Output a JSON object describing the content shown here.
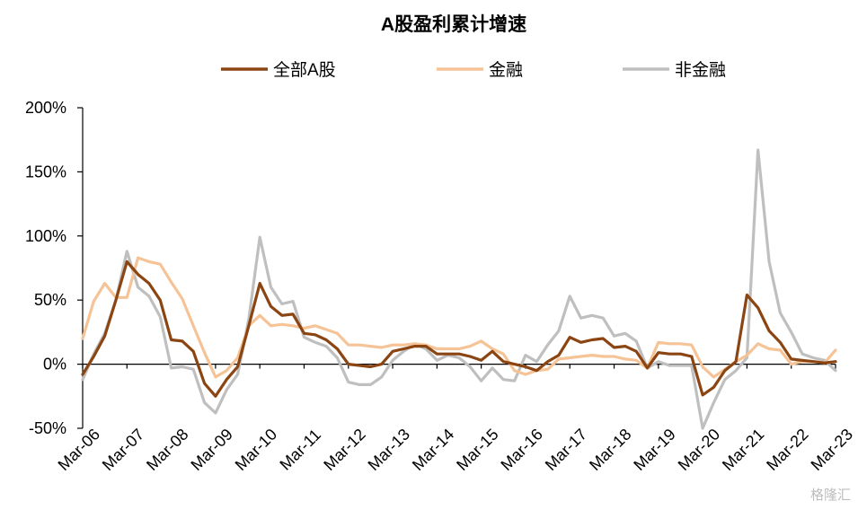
{
  "watermark": "格隆汇",
  "chart_data": {
    "type": "line",
    "title": "A股盈利累计增速",
    "xlabel": "",
    "ylabel": "",
    "ylim": [
      -50,
      200
    ],
    "yticks": [
      -50,
      0,
      50,
      100,
      150,
      200
    ],
    "ytick_labels": [
      "-50%",
      "0%",
      "50%",
      "100%",
      "150%",
      "200%"
    ],
    "y_unit": "%",
    "x_tick_labels": [
      "Mar-06",
      "Mar-07",
      "Mar-08",
      "Mar-09",
      "Mar-10",
      "Mar-11",
      "Mar-12",
      "Mar-13",
      "Mar-14",
      "Mar-15",
      "Mar-16",
      "Mar-17",
      "Mar-18",
      "Mar-19",
      "Mar-20",
      "Mar-21",
      "Mar-22",
      "Mar-23"
    ],
    "x_frequency": "quarterly",
    "x_start": "Mar-06",
    "grid": false,
    "legend_position": "top",
    "series": [
      {
        "name": "全部A股",
        "color": "#8B4513",
        "values": [
          -8,
          6,
          22,
          50,
          80,
          70,
          63,
          50,
          19,
          18,
          10,
          -15,
          -25,
          -12,
          -2,
          30,
          63,
          45,
          38,
          39,
          24,
          23,
          19,
          12,
          0,
          -1,
          -2,
          0,
          10,
          12,
          14,
          14,
          8,
          8,
          8,
          6,
          3,
          10,
          2,
          0,
          -2,
          -5,
          2,
          7,
          21,
          17,
          19,
          20,
          13,
          14,
          10,
          -3,
          9,
          8,
          8,
          6,
          -24,
          -18,
          -5,
          2,
          54,
          44,
          26,
          17,
          4,
          3,
          2,
          1,
          2
        ]
      },
      {
        "name": "金融",
        "color": "#F5C396",
        "values": [
          20,
          49,
          63,
          52,
          52,
          83,
          80,
          78,
          64,
          51,
          30,
          9,
          -10,
          -5,
          5,
          30,
          38,
          30,
          31,
          30,
          28,
          30,
          27,
          24,
          15,
          15,
          14,
          13,
          15,
          15,
          16,
          15,
          12,
          12,
          12,
          14,
          18,
          12,
          8,
          -5,
          -8,
          -5,
          -4,
          4,
          5,
          6,
          7,
          6,
          6,
          4,
          3,
          -3,
          17,
          16,
          16,
          15,
          -2,
          -10,
          -4,
          2,
          7,
          16,
          12,
          11,
          0,
          2,
          2,
          1,
          11
        ]
      },
      {
        "name": "非金融",
        "color": "#BFBFBF",
        "values": [
          -12,
          8,
          24,
          50,
          88,
          60,
          53,
          37,
          -3,
          -2,
          -4,
          -30,
          -38,
          -20,
          -8,
          35,
          99,
          60,
          47,
          49,
          21,
          17,
          14,
          5,
          -14,
          -16,
          -16,
          -10,
          3,
          10,
          16,
          12,
          3,
          7,
          5,
          -2,
          -13,
          -3,
          -12,
          -13,
          7,
          2,
          15,
          26,
          53,
          36,
          38,
          36,
          22,
          24,
          18,
          -3,
          2,
          -1,
          -1,
          -1,
          -50,
          -30,
          -12,
          -5,
          5,
          167,
          80,
          40,
          25,
          8,
          5,
          3,
          -5
        ]
      }
    ]
  }
}
